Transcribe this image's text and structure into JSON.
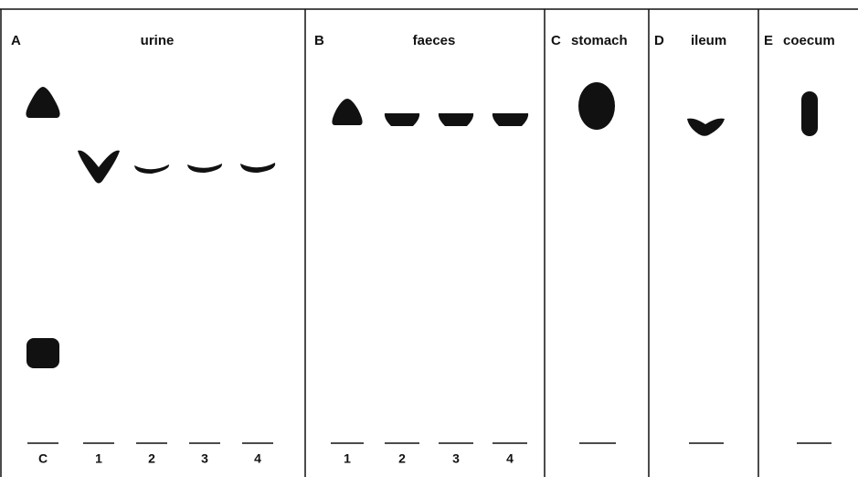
{
  "panels": [
    {
      "letter": "A",
      "title": "urine",
      "lanes": [
        "C",
        "1",
        "2",
        "3",
        "4"
      ]
    },
    {
      "letter": "B",
      "title": "faeces",
      "lanes": [
        "1",
        "2",
        "3",
        "4"
      ]
    },
    {
      "letter": "C",
      "title": "stomach"
    },
    {
      "letter": "D",
      "title": "ileum"
    },
    {
      "letter": "E",
      "title": "coecum"
    }
  ]
}
